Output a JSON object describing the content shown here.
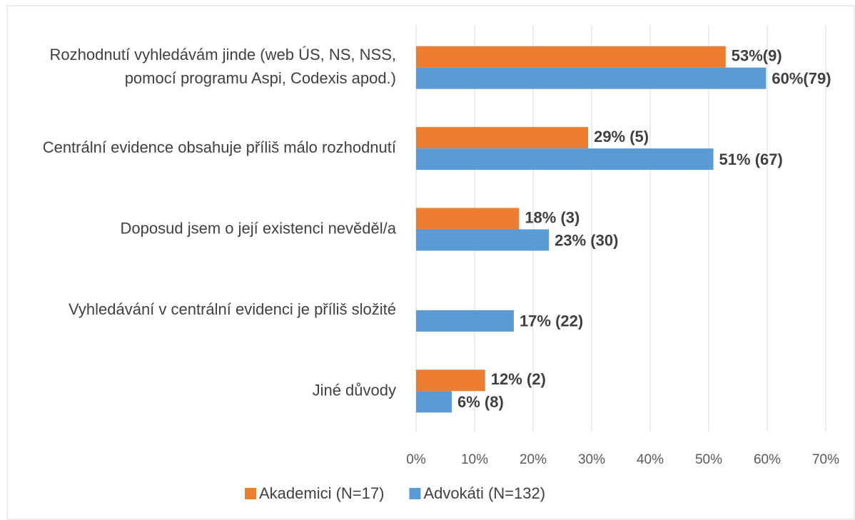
{
  "chart_data": {
    "type": "hbar",
    "categories": [
      "Rozhodnutí vyhledávám jinde (web ÚS, NS, NSS, pomocí programu Aspi, Codexis apod.)",
      "Centrální evidence obsahuje příliš málo rozhodnutí",
      "Doposud jsem o její existenci nevěděl/a",
      "Vyhledávání v centrální evidenci je příliš složité",
      "Jiné důvody"
    ],
    "series": [
      {
        "name": "Akademici (N=17)",
        "color": "#ED7D31",
        "values": [
          52.9,
          29.4,
          17.6,
          0,
          11.8
        ],
        "value_labels": [
          "53%(9)",
          "29% (5)",
          "18% (3)",
          null,
          "12% (2)"
        ]
      },
      {
        "name": "Advokáti (N=132)",
        "color": "#5B9BD5",
        "values": [
          59.8,
          50.8,
          22.7,
          16.7,
          6.1
        ],
        "value_labels": [
          "60%(79)",
          "51% (67)",
          "23% (30)",
          "17% (22)",
          "6% (8)"
        ]
      }
    ],
    "xlim": [
      0,
      70
    ],
    "xticks": [
      {
        "value": 0,
        "label": "0%"
      },
      {
        "value": 10,
        "label": "10%"
      },
      {
        "value": 20,
        "label": "20%"
      },
      {
        "value": 30,
        "label": "30%"
      },
      {
        "value": 40,
        "label": "40%"
      },
      {
        "value": 50,
        "label": "50%"
      },
      {
        "value": 60,
        "label": "60%"
      },
      {
        "value": 70,
        "label": "70%"
      }
    ],
    "grid": true,
    "legend": "bottom"
  }
}
